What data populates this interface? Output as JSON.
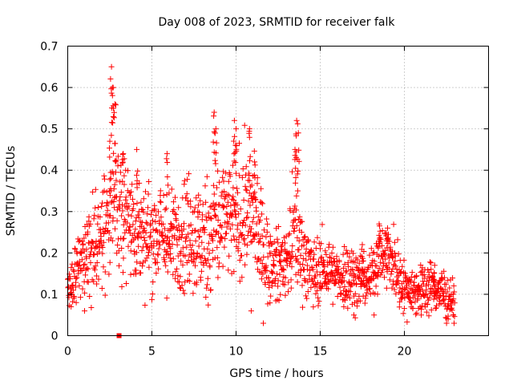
{
  "chart_data": {
    "type": "scatter",
    "title": "Day 008 of 2023, SRMTID for receiver falk",
    "xlabel": "GPS time / hours",
    "ylabel": "SRMTID / TECUs",
    "xlim": [
      0,
      25
    ],
    "ylim": [
      0,
      0.7
    ],
    "xticks": [
      0,
      5,
      10,
      15,
      20
    ],
    "yticks": [
      0,
      0.1,
      0.2,
      0.3,
      0.4,
      0.5,
      0.6,
      0.7
    ],
    "xtick_labels": [
      "0",
      "5",
      "10",
      "15",
      "20"
    ],
    "ytick_labels": [
      "0",
      "0.1",
      "0.2",
      "0.3",
      "0.4",
      "0.5",
      "0.6",
      "0.7"
    ],
    "grid": true,
    "marker": "+",
    "color": "#ff0000",
    "outlier_marker": {
      "shape": "square",
      "x": 3.05,
      "y": 0.0
    },
    "trend_profile": [
      [
        0.0,
        0.12,
        0.03
      ],
      [
        0.5,
        0.15,
        0.04
      ],
      [
        1.0,
        0.18,
        0.05
      ],
      [
        1.5,
        0.22,
        0.07
      ],
      [
        2.0,
        0.25,
        0.07
      ],
      [
        2.5,
        0.3,
        0.09
      ],
      [
        3.0,
        0.32,
        0.08
      ],
      [
        3.5,
        0.3,
        0.08
      ],
      [
        4.0,
        0.26,
        0.07
      ],
      [
        4.5,
        0.24,
        0.06
      ],
      [
        5.0,
        0.24,
        0.06
      ],
      [
        5.5,
        0.25,
        0.06
      ],
      [
        6.0,
        0.22,
        0.06
      ],
      [
        6.5,
        0.24,
        0.06
      ],
      [
        7.0,
        0.26,
        0.07
      ],
      [
        7.5,
        0.24,
        0.07
      ],
      [
        8.0,
        0.22,
        0.07
      ],
      [
        8.5,
        0.25,
        0.08
      ],
      [
        9.0,
        0.27,
        0.08
      ],
      [
        9.5,
        0.28,
        0.07
      ],
      [
        10.0,
        0.27,
        0.07
      ],
      [
        10.5,
        0.3,
        0.07
      ],
      [
        11.0,
        0.3,
        0.07
      ],
      [
        11.5,
        0.22,
        0.06
      ],
      [
        12.0,
        0.17,
        0.05
      ],
      [
        12.5,
        0.17,
        0.04
      ],
      [
        13.0,
        0.18,
        0.04
      ],
      [
        13.5,
        0.25,
        0.07
      ],
      [
        14.0,
        0.2,
        0.05
      ],
      [
        14.5,
        0.15,
        0.04
      ],
      [
        15.0,
        0.16,
        0.04
      ],
      [
        15.5,
        0.16,
        0.04
      ],
      [
        16.0,
        0.14,
        0.03
      ],
      [
        16.5,
        0.15,
        0.04
      ],
      [
        17.0,
        0.14,
        0.04
      ],
      [
        17.5,
        0.13,
        0.03
      ],
      [
        18.0,
        0.14,
        0.03
      ],
      [
        18.5,
        0.2,
        0.04
      ],
      [
        19.0,
        0.19,
        0.04
      ],
      [
        19.5,
        0.16,
        0.04
      ],
      [
        20.0,
        0.12,
        0.03
      ],
      [
        20.5,
        0.11,
        0.03
      ],
      [
        21.0,
        0.11,
        0.03
      ],
      [
        21.5,
        0.12,
        0.03
      ],
      [
        22.0,
        0.11,
        0.03
      ],
      [
        22.5,
        0.1,
        0.03
      ],
      [
        23.0,
        0.08,
        0.02
      ]
    ],
    "peaks": [
      {
        "x": 2.6,
        "y": 0.65
      },
      {
        "x": 2.7,
        "y": 0.6
      },
      {
        "x": 2.8,
        "y": 0.56
      },
      {
        "x": 2.5,
        "y": 0.47
      },
      {
        "x": 3.3,
        "y": 0.44
      },
      {
        "x": 4.1,
        "y": 0.45
      },
      {
        "x": 5.9,
        "y": 0.44
      },
      {
        "x": 8.7,
        "y": 0.54
      },
      {
        "x": 8.8,
        "y": 0.5
      },
      {
        "x": 9.9,
        "y": 0.52
      },
      {
        "x": 10.0,
        "y": 0.5
      },
      {
        "x": 10.8,
        "y": 0.5
      },
      {
        "x": 11.1,
        "y": 0.42
      },
      {
        "x": 13.6,
        "y": 0.52
      },
      {
        "x": 13.7,
        "y": 0.49
      },
      {
        "x": 13.5,
        "y": 0.45
      },
      {
        "x": 18.5,
        "y": 0.27
      },
      {
        "x": 19.0,
        "y": 0.26
      },
      {
        "x": 17.5,
        "y": 0.22
      },
      {
        "x": 21.8,
        "y": 0.17
      }
    ],
    "lows": [
      {
        "x": 0.2,
        "y": 0.07
      },
      {
        "x": 1.0,
        "y": 0.06
      },
      {
        "x": 10.9,
        "y": 0.06
      },
      {
        "x": 16.4,
        "y": 0.07
      },
      {
        "x": 17.0,
        "y": 0.05
      },
      {
        "x": 18.2,
        "y": 0.05
      },
      {
        "x": 21.0,
        "y": 0.05
      },
      {
        "x": 22.6,
        "y": 0.04
      },
      {
        "x": 22.9,
        "y": 0.05
      }
    ],
    "samples_per_hour": 70,
    "time_span_hours": [
      0,
      23
    ]
  }
}
